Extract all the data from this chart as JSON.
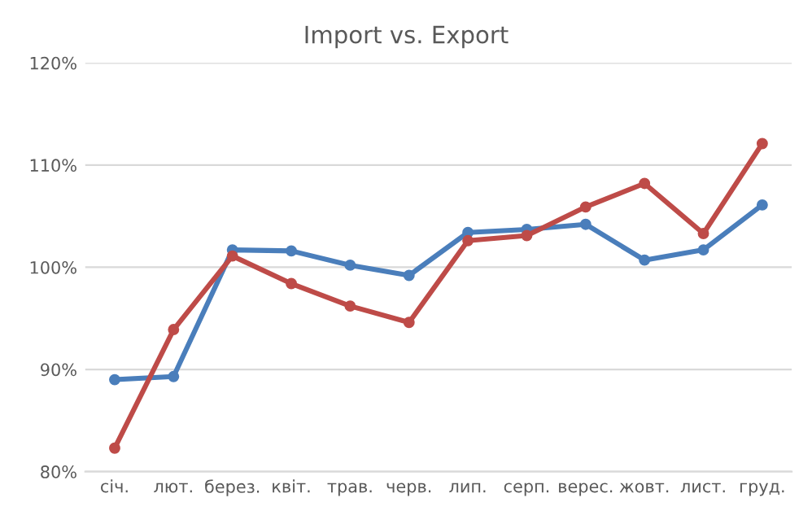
{
  "chart_data": {
    "type": "line",
    "title": "Import vs. Export",
    "categories": [
      "січ.",
      "лют.",
      "берез.",
      "квіт.",
      "трав.",
      "черв.",
      "лип.",
      "серп.",
      "верес.",
      "жовт.",
      "лист.",
      "груд."
    ],
    "series": [
      {
        "color": "#4a7ebb",
        "values": [
          89.0,
          89.3,
          101.7,
          101.6,
          100.2,
          99.2,
          103.4,
          103.7,
          104.2,
          100.7,
          101.7,
          106.1
        ]
      },
      {
        "color": "#be4b48",
        "values": [
          82.3,
          93.9,
          101.1,
          98.4,
          96.2,
          94.6,
          102.6,
          103.1,
          105.9,
          108.2,
          103.3,
          112.1
        ]
      }
    ],
    "ylim": [
      80,
      120
    ],
    "yticks": [
      {
        "value": 80,
        "label": "80%"
      },
      {
        "value": 90,
        "label": "90%"
      },
      {
        "value": 100,
        "label": "100%"
      },
      {
        "value": 110,
        "label": "110%"
      },
      {
        "value": 120,
        "label": "120%"
      }
    ],
    "grid": "y",
    "marker": "circle",
    "line_style": "solid"
  }
}
